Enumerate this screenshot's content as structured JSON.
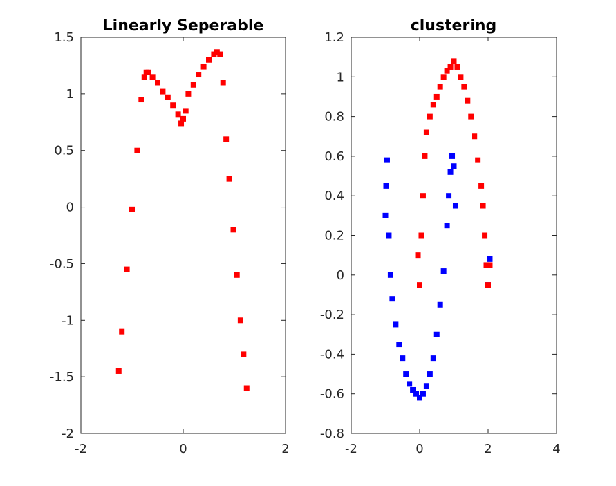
{
  "chart_data": [
    {
      "type": "scatter",
      "title": "Linearly Seperable",
      "xlabel": "",
      "ylabel": "",
      "xlim": [
        -2,
        2
      ],
      "ylim": [
        -2,
        1.5
      ],
      "xticks": [
        "-2",
        "0",
        "2"
      ],
      "xtick_values": [
        -2,
        0,
        2
      ],
      "yticks": [
        "-2",
        "-1.5",
        "-1",
        "-0.5",
        "0",
        "0.5",
        "1",
        "1.5"
      ],
      "ytick_values": [
        -2,
        -1.5,
        -1,
        -0.5,
        0,
        0.5,
        1,
        1.5
      ],
      "grid": false,
      "series": [
        {
          "color": "#ff0000",
          "x": [
            -1.26,
            -1.2,
            -1.1,
            -1.0,
            -0.9,
            -0.82,
            -0.76,
            -0.72,
            -0.68,
            -0.6,
            -0.5,
            -0.4,
            -0.3,
            -0.2,
            -0.1,
            -0.04,
            0.0,
            0.05,
            0.1,
            0.2,
            0.3,
            0.4,
            0.5,
            0.6,
            0.66,
            0.72,
            0.78,
            0.84,
            0.9,
            0.98,
            1.05,
            1.12,
            1.18,
            1.24
          ],
          "y": [
            -1.45,
            -1.1,
            -0.55,
            -0.02,
            0.5,
            0.95,
            1.15,
            1.19,
            1.19,
            1.15,
            1.1,
            1.02,
            0.97,
            0.9,
            0.82,
            0.74,
            0.78,
            0.85,
            1.0,
            1.08,
            1.17,
            1.24,
            1.3,
            1.35,
            1.37,
            1.35,
            1.1,
            0.6,
            0.25,
            -0.2,
            -0.6,
            -1.0,
            -1.3,
            -1.6
          ]
        }
      ]
    },
    {
      "type": "scatter",
      "title": "clustering",
      "xlabel": "",
      "ylabel": "",
      "xlim": [
        -2,
        4
      ],
      "ylim": [
        -0.8,
        1.2
      ],
      "xticks": [
        "-2",
        "0",
        "2",
        "4"
      ],
      "xtick_values": [
        -2,
        0,
        2,
        4
      ],
      "yticks": [
        "-0.8",
        "-0.6",
        "-0.4",
        "-0.2",
        "0",
        "0.2",
        "0.4",
        "0.6",
        "0.8",
        "1",
        "1.2"
      ],
      "ytick_values": [
        -0.8,
        -0.6,
        -0.4,
        -0.2,
        0,
        0.2,
        0.4,
        0.6,
        0.8,
        1,
        1.2
      ],
      "grid": false,
      "series": [
        {
          "color": "#0000ff",
          "x": [
            -1.0,
            -0.98,
            -0.95,
            -0.9,
            -0.85,
            -0.8,
            -0.7,
            -0.6,
            -0.5,
            -0.4,
            -0.3,
            -0.2,
            -0.1,
            0.0,
            0.1,
            0.2,
            0.3,
            0.4,
            0.5,
            0.6,
            0.7,
            0.8,
            0.85,
            0.9,
            0.95,
            1.0,
            1.05,
            1.95,
            2.0,
            2.05
          ],
          "y": [
            0.3,
            0.45,
            0.58,
            0.2,
            0.0,
            -0.12,
            -0.25,
            -0.35,
            -0.42,
            -0.5,
            -0.55,
            -0.58,
            -0.6,
            -0.62,
            -0.6,
            -0.56,
            -0.5,
            -0.42,
            -0.3,
            -0.15,
            0.02,
            0.25,
            0.4,
            0.52,
            0.6,
            0.55,
            0.35,
            0.05,
            -0.05,
            0.08
          ]
        },
        {
          "color": "#ff0000",
          "x": [
            -0.05,
            0.0,
            0.05,
            0.1,
            0.15,
            0.2,
            0.3,
            0.4,
            0.5,
            0.6,
            0.7,
            0.8,
            0.9,
            1.0,
            1.1,
            1.2,
            1.3,
            1.4,
            1.5,
            1.6,
            1.7,
            1.8,
            1.85,
            1.9,
            1.95,
            2.0,
            2.05
          ],
          "y": [
            0.1,
            -0.05,
            0.2,
            0.4,
            0.6,
            0.72,
            0.8,
            0.86,
            0.9,
            0.95,
            1.0,
            1.03,
            1.05,
            1.08,
            1.05,
            1.0,
            0.95,
            0.88,
            0.8,
            0.7,
            0.58,
            0.45,
            0.35,
            0.2,
            0.05,
            -0.05,
            0.05
          ]
        }
      ]
    }
  ]
}
